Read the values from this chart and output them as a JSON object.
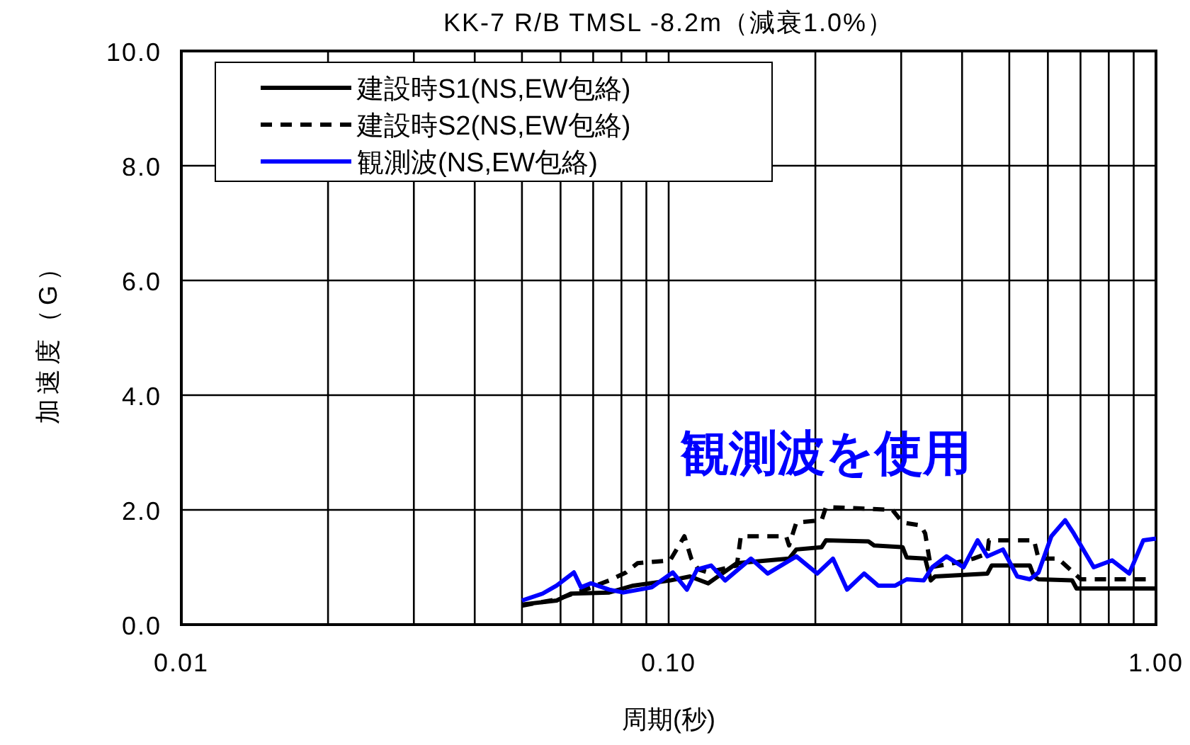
{
  "chart_data": {
    "type": "line",
    "title": "KK-7 R/B TMSL -8.2m（減衰1.0%）",
    "xlabel": "周期(秒)",
    "ylabel": "加速度（G）",
    "log": "x",
    "grid": true,
    "legend": "top left",
    "xlim": [
      0.01,
      1.0
    ],
    "xticks": [
      {
        "value": 0.01,
        "label": "0.01"
      },
      {
        "value": 0.1,
        "label": "0.10"
      },
      {
        "value": 1.0,
        "label": "1.00"
      }
    ],
    "ylim": [
      0,
      10
    ],
    "yticks": [
      {
        "value": 0,
        "label": "0.0"
      },
      {
        "value": 2,
        "label": "2.0"
      },
      {
        "value": 4,
        "label": "4.0"
      },
      {
        "value": 6,
        "label": "6.0"
      },
      {
        "value": 8,
        "label": "8.0"
      },
      {
        "value": 10,
        "label": "10.0"
      }
    ],
    "annotations": [
      "観測波を使用"
    ],
    "series": [
      {
        "name": "建設時S1(NS,EW包絡)",
        "color": "#000000",
        "line_style": "solid",
        "x": [
          0.05,
          0.0589,
          0.063,
          0.0755,
          0.0846,
          0.1007,
          0.1106,
          0.1205,
          0.138,
          0.1766,
          0.1828,
          0.206,
          0.2103,
          0.257,
          0.264,
          0.302,
          0.3079,
          0.336,
          0.345,
          0.352,
          0.4508,
          0.46,
          0.551,
          0.562,
          0.574,
          0.673,
          0.687,
          1.0
        ],
        "values": [
          0.35,
          0.42,
          0.54,
          0.56,
          0.68,
          0.77,
          0.84,
          0.72,
          1.07,
          1.15,
          1.31,
          1.35,
          1.47,
          1.45,
          1.38,
          1.35,
          1.17,
          1.15,
          0.77,
          0.84,
          0.89,
          1.03,
          1.03,
          0.84,
          0.79,
          0.77,
          0.63,
          0.63
        ]
      },
      {
        "name": "建設時S2(NS,EW包絡)",
        "color": "#000000",
        "line_style": "dashed",
        "x": [
          0.05,
          0.0589,
          0.0674,
          0.0755,
          0.0818,
          0.0863,
          0.1007,
          0.1077,
          0.1113,
          0.1151,
          0.1205,
          0.138,
          0.1406,
          0.1742,
          0.1766,
          0.1828,
          0.206,
          0.2103,
          0.2878,
          0.302,
          0.329,
          0.336,
          0.345,
          0.3837,
          0.4219,
          0.4508,
          0.454,
          0.562,
          0.574,
          0.63,
          0.701,
          0.961
        ],
        "values": [
          0.33,
          0.44,
          0.61,
          0.77,
          0.91,
          1.07,
          1.12,
          1.54,
          1.15,
          0.96,
          0.91,
          1.03,
          1.54,
          1.54,
          1.38,
          1.78,
          1.82,
          2.05,
          2.0,
          1.78,
          1.73,
          1.59,
          1.0,
          1.07,
          1.15,
          1.24,
          1.47,
          1.47,
          1.15,
          1.15,
          0.79,
          0.79
        ]
      },
      {
        "name": "観測波(NS,EW包絡)",
        "color": "#0000ff",
        "line_style": "solid",
        "x": [
          0.05,
          0.0551,
          0.0589,
          0.0639,
          0.0661,
          0.0692,
          0.0755,
          0.0807,
          0.0923,
          0.102,
          0.109,
          0.1143,
          0.1222,
          0.1306,
          0.1475,
          0.1597,
          0.1828,
          0.2018,
          0.2173,
          0.2323,
          0.2518,
          0.2692,
          0.2918,
          0.3079,
          0.3337,
          0.3475,
          0.3715,
          0.4027,
          0.4305,
          0.4508,
          0.4853,
          0.519,
          0.551,
          0.574,
          0.61,
          0.651,
          0.678,
          0.745,
          0.813,
          0.881,
          0.942,
          1.0
        ],
        "values": [
          0.42,
          0.54,
          0.68,
          0.91,
          0.65,
          0.72,
          0.61,
          0.56,
          0.65,
          0.91,
          0.61,
          0.96,
          1.03,
          0.77,
          1.15,
          0.89,
          1.19,
          0.89,
          1.15,
          0.61,
          0.89,
          0.68,
          0.68,
          0.79,
          0.77,
          1.0,
          1.19,
          1.0,
          1.47,
          1.19,
          1.31,
          0.84,
          0.79,
          0.91,
          1.54,
          1.82,
          1.59,
          1.0,
          1.12,
          0.89,
          1.47,
          1.5
        ]
      }
    ]
  }
}
